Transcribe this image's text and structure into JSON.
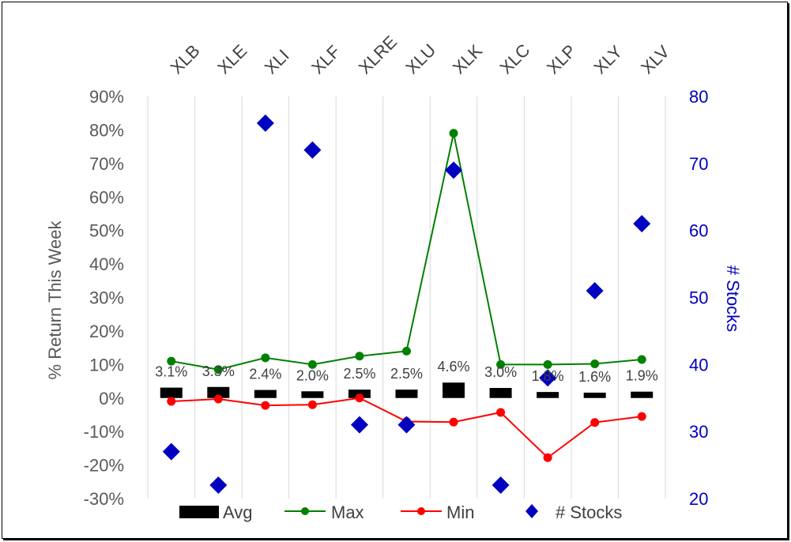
{
  "chart_data": {
    "type": "bar",
    "categories": [
      "XLB",
      "XLE",
      "XLI",
      "XLF",
      "XLRE",
      "XLU",
      "XLK",
      "XLC",
      "XLP",
      "XLY",
      "XLV"
    ],
    "series": [
      {
        "name": "Avg",
        "type": "bar",
        "axis": "left",
        "color": "#000000",
        "values": [
          3.1,
          3.3,
          2.4,
          2.0,
          2.5,
          2.5,
          4.6,
          3.0,
          1.8,
          1.6,
          1.9
        ],
        "data_labels": [
          "3.1%",
          "3.3%",
          "2.4%",
          "2.0%",
          "2.5%",
          "2.5%",
          "4.6%",
          "3.0%",
          "1.8%",
          "1.6%",
          "1.9%"
        ]
      },
      {
        "name": "Max",
        "type": "line",
        "axis": "left",
        "color": "#008000",
        "values": [
          11.0,
          8.5,
          12.0,
          10.0,
          12.5,
          14.0,
          79.0,
          10.0,
          10.0,
          10.2,
          11.5
        ]
      },
      {
        "name": "Min",
        "type": "line",
        "axis": "left",
        "color": "#ff0000",
        "values": [
          -1.0,
          -0.3,
          -2.2,
          -2.0,
          0.0,
          -7.0,
          -7.2,
          -4.3,
          -17.8,
          -7.3,
          -5.5
        ]
      },
      {
        "name": "# Stocks",
        "type": "scatter",
        "axis": "right",
        "color": "#0000c0",
        "marker": "diamond",
        "values": [
          27,
          22,
          76,
          72,
          31,
          31,
          69,
          22,
          38,
          51,
          61
        ]
      }
    ],
    "ylabel": "% Return This Week",
    "ylabel_right": "# Stocks",
    "ylim": [
      -30,
      90
    ],
    "ylim_right": [
      20,
      80
    ],
    "yticks": [
      "90%",
      "80%",
      "70%",
      "60%",
      "50%",
      "40%",
      "30%",
      "20%",
      "10%",
      "0%",
      "-10%",
      "-20%",
      "-30%"
    ],
    "yticks_right": [
      "80",
      "70",
      "60",
      "50",
      "40",
      "30",
      "20"
    ],
    "x_axis_position": "top",
    "grid": "vertical",
    "legend": "bottom"
  }
}
